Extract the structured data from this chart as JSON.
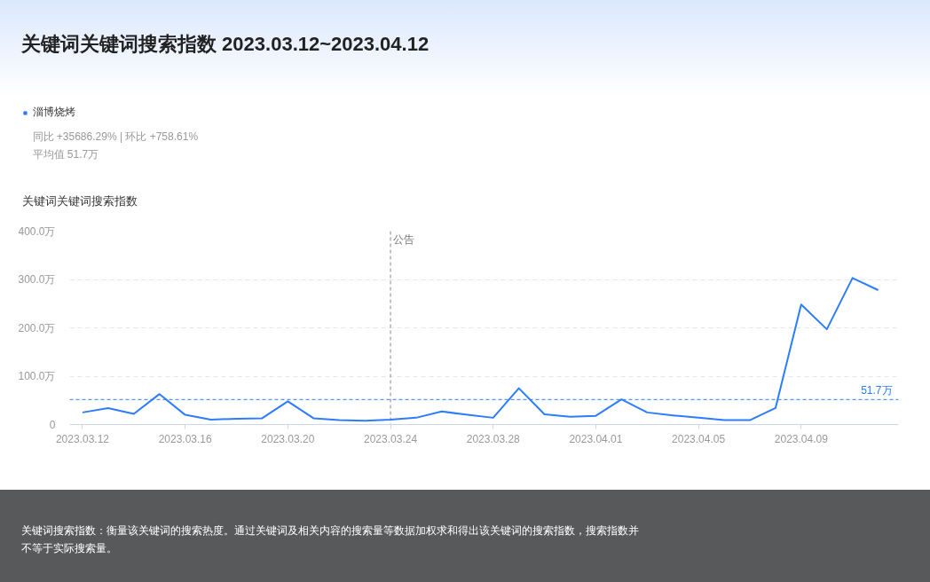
{
  "chart_data": {
    "type": "line",
    "title": "关键词关键词搜索指数 2023.03.12~2023.04.12",
    "ylabel": "关键词关键词搜索指数",
    "x": [
      "2023-03-12",
      "2023-03-13",
      "2023-03-14",
      "2023-03-15",
      "2023-03-16",
      "2023-03-17",
      "2023-03-18",
      "2023-03-19",
      "2023-03-20",
      "2023-03-21",
      "2023-03-22",
      "2023-03-23",
      "2023-03-24",
      "2023-03-25",
      "2023-03-26",
      "2023-03-27",
      "2023-03-28",
      "2023-03-29",
      "2023-03-30",
      "2023-03-31",
      "2023-04-01",
      "2023-04-02",
      "2023-04-03",
      "2023-04-04",
      "2023-04-05",
      "2023-04-06",
      "2023-04-07",
      "2023-04-08",
      "2023-04-09",
      "2023-04-10",
      "2023-04-11",
      "2023-04-12"
    ],
    "series": [
      {
        "name": "淄博烧烤",
        "color": "#2b7cff",
        "values": [
          25,
          34,
          22,
          63,
          20,
          10,
          12,
          13,
          48,
          13,
          9,
          8,
          10,
          14,
          27,
          20,
          14,
          75,
          21,
          16,
          18,
          52,
          25,
          19,
          14,
          9,
          9,
          34,
          248,
          197,
          303,
          278
        ]
      }
    ],
    "xlim": [
      "2023-03-11T12:00",
      "2023-04-12T19:00"
    ],
    "ylim": [
      0,
      400
    ],
    "xticks": [
      {
        "value": "2023-03-12",
        "label": "2023.03.12"
      },
      {
        "value": "2023-03-16",
        "label": "2023.03.16"
      },
      {
        "value": "2023-03-20",
        "label": "2023.03.20"
      },
      {
        "value": "2023-03-24",
        "label": "2023.03.24"
      },
      {
        "value": "2023-03-28",
        "label": "2023.03.28"
      },
      {
        "value": "2023-04-01",
        "label": "2023.04.01"
      },
      {
        "value": "2023-04-05",
        "label": "2023.04.05"
      },
      {
        "value": "2023-04-09",
        "label": "2023.04.09"
      }
    ],
    "yticks": [
      0,
      {
        "value": 100,
        "label": "100.0万"
      },
      {
        "value": 200,
        "label": "200.0万"
      },
      {
        "value": 300,
        "label": "300.0万"
      },
      {
        "value": 400,
        "label": "400.0万"
      }
    ],
    "grid": "y",
    "legend": "top left",
    "ref_lines": [
      {
        "axis": "y",
        "value": 51.7,
        "label": "51.7万",
        "color": "#2b7cff",
        "line_style": "dashed"
      },
      {
        "axis": "x",
        "value": "2023-03-24",
        "label": "公告",
        "color": "#888888",
        "line_style": "dashed"
      }
    ],
    "annotations": [
      "同比 +35686.29% | 环比 +758.61%",
      "平均值 51.7万",
      "关键词搜索指数：衡量该关键词的搜索热度。通过关键词及相关内容的搜索量等数据加权求和得出该关键词的搜索指数，搜索指数并不等于实际搜索量。"
    ]
  }
}
